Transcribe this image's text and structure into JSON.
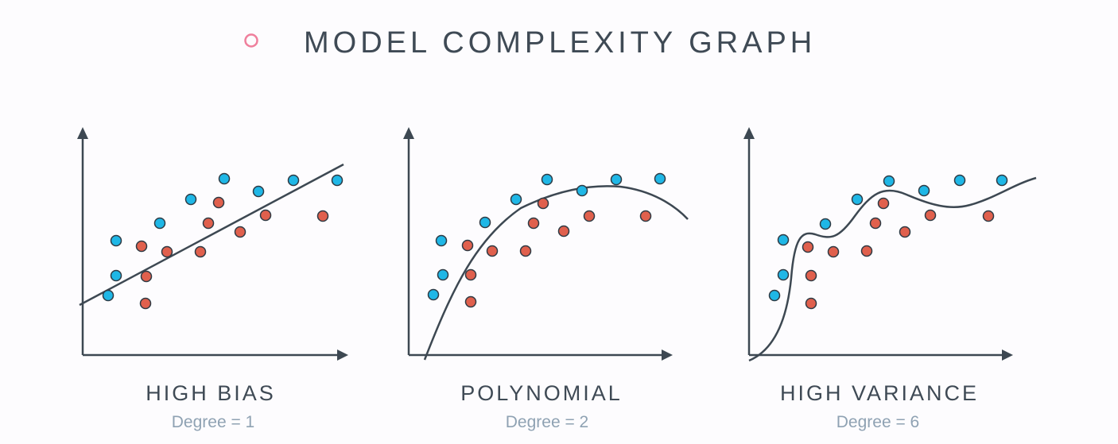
{
  "header": {
    "title": "MODEL COMPLEXITY GRAPH",
    "bullet_icon": "ring-bullet-icon",
    "bullet_color": "#ef7f9c"
  },
  "colors": {
    "axis": "#3d4852",
    "curve": "#3d4852",
    "blue_point": "#1fb7e6",
    "red_point": "#e0604d",
    "point_stroke": "#2e3a44"
  },
  "panels": [
    {
      "title": "HIGH BIAS",
      "subtitle": "Degree = 1"
    },
    {
      "title": "POLYNOMIAL",
      "subtitle": "Degree = 2"
    },
    {
      "title": "HIGH VARIANCE",
      "subtitle": "Degree = 6"
    }
  ]
}
